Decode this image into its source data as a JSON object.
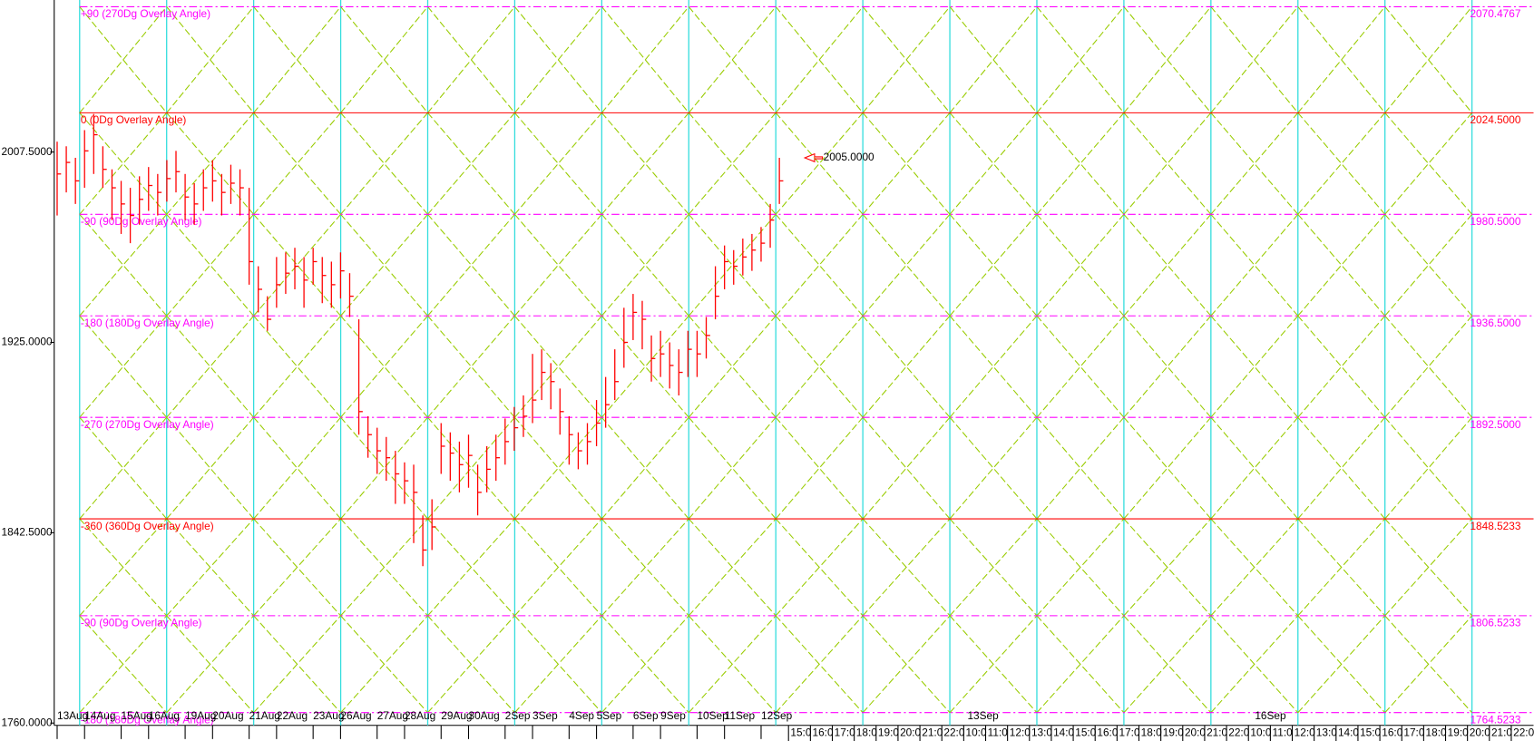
{
  "chart_data": {
    "type": "ohlc",
    "ylim": [
      1759,
      2073.4
    ],
    "yticks": [
      {
        "value": 1760,
        "label": "1760.0000"
      },
      {
        "value": 1842.5,
        "label": "1842.5000"
      },
      {
        "value": 1925,
        "label": "1925.0000"
      },
      {
        "value": 2007.5,
        "label": "2007.5000"
      }
    ],
    "color": "#ff0000",
    "categories": [
      "13Aug",
      null,
      null,
      "14Aug",
      null,
      null,
      null,
      "15Aug",
      null,
      null,
      "16Aug",
      null,
      null,
      null,
      "19Aug",
      null,
      null,
      "20Aug",
      null,
      null,
      null,
      "21Aug",
      null,
      null,
      "22Aug",
      null,
      null,
      null,
      "23Aug",
      null,
      null,
      "26Aug",
      null,
      null,
      null,
      "27Aug",
      null,
      null,
      "28Aug",
      null,
      null,
      null,
      "29Aug",
      null,
      null,
      "30Aug",
      null,
      null,
      null,
      "2Sep",
      null,
      null,
      "3Sep",
      null,
      null,
      null,
      "4Sep",
      null,
      null,
      "5Sep",
      null,
      null,
      null,
      "6Sep",
      null,
      null,
      "9Sep",
      null,
      null,
      null,
      "10Sep",
      null,
      null,
      "11Sep",
      null,
      null,
      null,
      "12Sep",
      null,
      null
    ],
    "high": [
      2012,
      2010,
      2005,
      2017,
      2024,
      2010,
      2000,
      1995,
      1992,
      1997,
      2001,
      1998,
      2004,
      2008,
      1998,
      1994,
      2000,
      2004,
      1998,
      2002,
      2000,
      1992,
      1958,
      1945,
      1962,
      1964,
      1966,
      1962,
      1966,
      1962,
      1960,
      1964,
      1955,
      1935,
      1893,
      1888,
      1884,
      1878,
      1873,
      1872,
      1850,
      1857,
      1890,
      1886,
      1882,
      1885,
      1872,
      1880,
      1885,
      1892,
      1897,
      1902,
      1920,
      1922,
      1916,
      1905,
      1893,
      1886,
      1890,
      1900,
      1910,
      1922,
      1940,
      1946,
      1943,
      1928,
      1930,
      1925,
      1922,
      1930,
      1930,
      1936,
      1958,
      1967,
      1965,
      1970,
      1972,
      1975,
      1985,
      2005
    ],
    "low": [
      1980,
      1990,
      1985,
      1992,
      1998,
      1992,
      1978,
      1972,
      1968,
      1976,
      1982,
      1980,
      1986,
      1990,
      1978,
      1976,
      1982,
      1986,
      1980,
      1985,
      1980,
      1950,
      1938,
      1930,
      1940,
      1946,
      1948,
      1940,
      1950,
      1942,
      1940,
      1944,
      1936,
      1885,
      1875,
      1868,
      1865,
      1855,
      1855,
      1838,
      1828,
      1835,
      1868,
      1865,
      1860,
      1862,
      1850,
      1860,
      1865,
      1872,
      1878,
      1884,
      1890,
      1900,
      1896,
      1885,
      1872,
      1870,
      1872,
      1880,
      1888,
      1900,
      1914,
      1926,
      1922,
      1908,
      1910,
      1905,
      1902,
      1910,
      1910,
      1918,
      1935,
      1948,
      1950,
      1954,
      1956,
      1960,
      1966,
      1985
    ],
    "close": [
      1998,
      2003,
      1995,
      2008,
      2015,
      2000,
      1992,
      1985,
      1980,
      1987,
      1993,
      1990,
      1996,
      1999,
      1988,
      1985,
      1992,
      1995,
      1990,
      1994,
      1992,
      1960,
      1948,
      1935,
      1950,
      1955,
      1958,
      1952,
      1960,
      1954,
      1950,
      1956,
      1945,
      1895,
      1885,
      1878,
      1875,
      1868,
      1865,
      1860,
      1835,
      1845,
      1880,
      1877,
      1872,
      1876,
      1860,
      1870,
      1875,
      1882,
      1888,
      1893,
      1900,
      1912,
      1908,
      1895,
      1885,
      1878,
      1882,
      1890,
      1898,
      1908,
      1925,
      1938,
      1935,
      1918,
      1920,
      1915,
      1912,
      1922,
      1920,
      1928,
      1945,
      1960,
      1958,
      1962,
      1965,
      1968,
      1978,
      1995
    ],
    "levels": {
      "values": [
        2070.4767,
        2024.5,
        1980.5,
        1936.5,
        1892.5,
        1848.5233,
        1806.5233,
        1764.5233
      ],
      "value_labels": [
        "2070.4767",
        "2024.5000",
        "1980.5000",
        "1936.5000",
        "1892.5000",
        "1848.5233",
        "1806.5233",
        "1764.5233"
      ],
      "names": [
        "+90 (270Dg Overlay Angle)",
        "0 (0Dg Overlay Angle)",
        "-90 (90Dg Overlay Angle)",
        "-180 (180Dg Overlay Angle)",
        "-270 (270Dg Overlay Angle)",
        "-360 (360Dg Overlay Angle)",
        "-90 (90Dg Overlay Angle)",
        "-180 (180Dg Overlay Angle)"
      ],
      "colors": [
        "#ff00ff",
        "#ff0000",
        "#ff00ff",
        "#ff00ff",
        "#ff00ff",
        "#ff0000",
        "#ff00ff",
        "#ff00ff"
      ],
      "solid": [
        false,
        true,
        false,
        false,
        false,
        true,
        false,
        false
      ]
    },
    "annotation": {
      "value": 2005,
      "label": "2005.0000"
    },
    "future_dates": [
      "13Sep",
      "16Sep"
    ],
    "future_hours": [
      "15:0",
      "16:0",
      "17:0",
      "18:0",
      "19:0",
      "20:0",
      "21:0",
      "22:0",
      "10:0",
      "11:0",
      "12:0",
      "13:0",
      "14:0",
      "15:0",
      "16:0",
      "17:0",
      "18:0",
      "19:0",
      "20:0",
      "21:0",
      "22:0",
      "10:0",
      "11:0",
      "12:0",
      "13:0",
      "14:0",
      "15:0",
      "16:0",
      "17:0",
      "18:0",
      "19:0",
      "20:0",
      "21:0",
      "22:0"
    ]
  }
}
